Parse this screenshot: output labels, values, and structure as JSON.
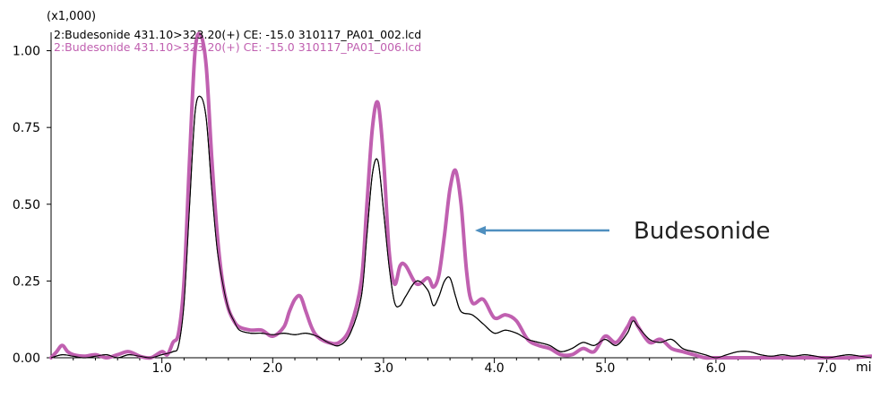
{
  "chart_data": {
    "type": "line",
    "multiplier_label": "(x1,000)",
    "x_unit_label": "min",
    "xlim": [
      0.0,
      7.4
    ],
    "ylim": [
      0.0,
      1.06
    ],
    "x_ticks": [
      1.0,
      2.0,
      3.0,
      4.0,
      5.0,
      6.0,
      7.0
    ],
    "x_tick_labels": [
      "1.0",
      "2.0",
      "3.0",
      "4.0",
      "5.0",
      "6.0",
      "7.0"
    ],
    "y_ticks": [
      0.0,
      0.25,
      0.5,
      0.75,
      1.0
    ],
    "y_tick_labels": [
      "0.00",
      "0.25",
      "0.50",
      "0.75",
      "1.00"
    ],
    "grid": false,
    "legend_position": "top-left",
    "annotation": {
      "text": "Budesonide",
      "points_to": [
        3.78,
        0.44
      ]
    },
    "series": [
      {
        "name": "2:Budesonide 431.10>323.20(+) CE: -15.0 310117_PA01_002.lcd",
        "color": "#000000",
        "points": [
          [
            0.0,
            0.0
          ],
          [
            0.1,
            0.01
          ],
          [
            0.2,
            0.005
          ],
          [
            0.3,
            0.0
          ],
          [
            0.4,
            0.005
          ],
          [
            0.5,
            0.01
          ],
          [
            0.6,
            0.0
          ],
          [
            0.7,
            0.01
          ],
          [
            0.8,
            0.005
          ],
          [
            0.9,
            0.0
          ],
          [
            1.0,
            0.01
          ],
          [
            1.1,
            0.02
          ],
          [
            1.15,
            0.04
          ],
          [
            1.2,
            0.18
          ],
          [
            1.25,
            0.5
          ],
          [
            1.3,
            0.8
          ],
          [
            1.35,
            0.85
          ],
          [
            1.4,
            0.78
          ],
          [
            1.45,
            0.55
          ],
          [
            1.5,
            0.35
          ],
          [
            1.55,
            0.24
          ],
          [
            1.6,
            0.16
          ],
          [
            1.65,
            0.12
          ],
          [
            1.7,
            0.09
          ],
          [
            1.8,
            0.08
          ],
          [
            1.9,
            0.08
          ],
          [
            2.0,
            0.075
          ],
          [
            2.1,
            0.08
          ],
          [
            2.2,
            0.075
          ],
          [
            2.3,
            0.08
          ],
          [
            2.4,
            0.07
          ],
          [
            2.5,
            0.05
          ],
          [
            2.6,
            0.04
          ],
          [
            2.7,
            0.08
          ],
          [
            2.8,
            0.2
          ],
          [
            2.85,
            0.4
          ],
          [
            2.9,
            0.6
          ],
          [
            2.95,
            0.64
          ],
          [
            3.0,
            0.48
          ],
          [
            3.05,
            0.3
          ],
          [
            3.1,
            0.18
          ],
          [
            3.15,
            0.17
          ],
          [
            3.2,
            0.2
          ],
          [
            3.3,
            0.25
          ],
          [
            3.4,
            0.22
          ],
          [
            3.45,
            0.17
          ],
          [
            3.5,
            0.2
          ],
          [
            3.55,
            0.25
          ],
          [
            3.6,
            0.26
          ],
          [
            3.65,
            0.2
          ],
          [
            3.7,
            0.15
          ],
          [
            3.8,
            0.14
          ],
          [
            3.9,
            0.11
          ],
          [
            4.0,
            0.08
          ],
          [
            4.1,
            0.09
          ],
          [
            4.2,
            0.08
          ],
          [
            4.3,
            0.06
          ],
          [
            4.4,
            0.05
          ],
          [
            4.5,
            0.04
          ],
          [
            4.6,
            0.02
          ],
          [
            4.7,
            0.03
          ],
          [
            4.8,
            0.05
          ],
          [
            4.9,
            0.04
          ],
          [
            5.0,
            0.06
          ],
          [
            5.1,
            0.04
          ],
          [
            5.2,
            0.08
          ],
          [
            5.25,
            0.12
          ],
          [
            5.3,
            0.1
          ],
          [
            5.4,
            0.06
          ],
          [
            5.5,
            0.05
          ],
          [
            5.6,
            0.06
          ],
          [
            5.7,
            0.03
          ],
          [
            5.8,
            0.02
          ],
          [
            5.9,
            0.01
          ],
          [
            6.0,
            0.0
          ],
          [
            6.1,
            0.01
          ],
          [
            6.2,
            0.02
          ],
          [
            6.3,
            0.02
          ],
          [
            6.4,
            0.01
          ],
          [
            6.5,
            0.005
          ],
          [
            6.6,
            0.01
          ],
          [
            6.7,
            0.005
          ],
          [
            6.8,
            0.01
          ],
          [
            6.9,
            0.005
          ],
          [
            7.0,
            0.0
          ],
          [
            7.1,
            0.005
          ],
          [
            7.2,
            0.01
          ],
          [
            7.3,
            0.005
          ],
          [
            7.4,
            0.0
          ]
        ]
      },
      {
        "name": "2:Budesonide 431.10>323.20(+) CE: -15.0 310117_PA01_006.lcd",
        "color": "#c060b0",
        "points": [
          [
            0.0,
            0.0
          ],
          [
            0.05,
            0.02
          ],
          [
            0.1,
            0.04
          ],
          [
            0.15,
            0.02
          ],
          [
            0.2,
            0.01
          ],
          [
            0.3,
            0.005
          ],
          [
            0.4,
            0.01
          ],
          [
            0.5,
            0.0
          ],
          [
            0.6,
            0.01
          ],
          [
            0.7,
            0.02
          ],
          [
            0.8,
            0.005
          ],
          [
            0.9,
            0.0
          ],
          [
            1.0,
            0.02
          ],
          [
            1.05,
            0.01
          ],
          [
            1.1,
            0.05
          ],
          [
            1.15,
            0.08
          ],
          [
            1.2,
            0.25
          ],
          [
            1.25,
            0.65
          ],
          [
            1.3,
            1.0
          ],
          [
            1.35,
            1.05
          ],
          [
            1.4,
            0.95
          ],
          [
            1.45,
            0.65
          ],
          [
            1.5,
            0.4
          ],
          [
            1.55,
            0.24
          ],
          [
            1.6,
            0.16
          ],
          [
            1.65,
            0.12
          ],
          [
            1.7,
            0.1
          ],
          [
            1.8,
            0.09
          ],
          [
            1.9,
            0.09
          ],
          [
            2.0,
            0.07
          ],
          [
            2.1,
            0.1
          ],
          [
            2.15,
            0.15
          ],
          [
            2.2,
            0.19
          ],
          [
            2.25,
            0.2
          ],
          [
            2.3,
            0.15
          ],
          [
            2.35,
            0.1
          ],
          [
            2.4,
            0.07
          ],
          [
            2.5,
            0.05
          ],
          [
            2.6,
            0.05
          ],
          [
            2.7,
            0.1
          ],
          [
            2.8,
            0.25
          ],
          [
            2.85,
            0.5
          ],
          [
            2.9,
            0.75
          ],
          [
            2.95,
            0.83
          ],
          [
            3.0,
            0.65
          ],
          [
            3.05,
            0.35
          ],
          [
            3.1,
            0.24
          ],
          [
            3.15,
            0.3
          ],
          [
            3.2,
            0.3
          ],
          [
            3.3,
            0.24
          ],
          [
            3.4,
            0.26
          ],
          [
            3.45,
            0.23
          ],
          [
            3.5,
            0.27
          ],
          [
            3.55,
            0.4
          ],
          [
            3.6,
            0.55
          ],
          [
            3.65,
            0.61
          ],
          [
            3.7,
            0.5
          ],
          [
            3.75,
            0.28
          ],
          [
            3.8,
            0.18
          ],
          [
            3.9,
            0.19
          ],
          [
            4.0,
            0.13
          ],
          [
            4.1,
            0.14
          ],
          [
            4.2,
            0.12
          ],
          [
            4.3,
            0.06
          ],
          [
            4.4,
            0.04
          ],
          [
            4.5,
            0.03
          ],
          [
            4.6,
            0.01
          ],
          [
            4.7,
            0.01
          ],
          [
            4.8,
            0.03
          ],
          [
            4.9,
            0.02
          ],
          [
            5.0,
            0.07
          ],
          [
            5.1,
            0.05
          ],
          [
            5.2,
            0.1
          ],
          [
            5.25,
            0.13
          ],
          [
            5.3,
            0.1
          ],
          [
            5.4,
            0.05
          ],
          [
            5.5,
            0.06
          ],
          [
            5.6,
            0.03
          ],
          [
            5.7,
            0.02
          ],
          [
            5.8,
            0.01
          ],
          [
            5.9,
            0.0
          ],
          [
            6.0,
            0.0
          ],
          [
            6.2,
            0.0
          ],
          [
            6.4,
            0.0
          ],
          [
            6.6,
            0.0
          ],
          [
            6.8,
            0.0
          ],
          [
            7.0,
            0.0
          ],
          [
            7.2,
            0.0
          ],
          [
            7.4,
            0.005
          ]
        ]
      }
    ]
  },
  "colors": {
    "arrow": "#4f8fbf",
    "axis": "#000000",
    "annotation_text": "#222222"
  }
}
